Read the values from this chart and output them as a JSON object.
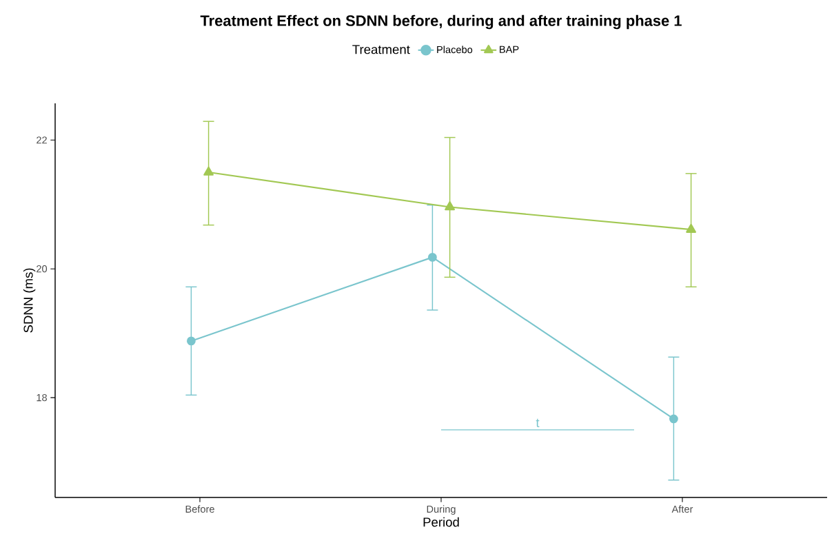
{
  "chart_data": {
    "type": "line",
    "title": "Treatment Effect on SDNN before, during and after training phase 1",
    "xlabel": "Period",
    "ylabel": "SDNN (ms)",
    "legend_title": "Treatment",
    "legend": "top",
    "categories": [
      "Before",
      "During",
      "After"
    ],
    "series": [
      {
        "name": "Placebo",
        "color": "#7ac5cd",
        "marker": "circle",
        "values": [
          18.88,
          20.18,
          17.67
        ],
        "errors": [
          [
            18.04,
            19.72
          ],
          [
            19.36,
            20.99
          ],
          [
            16.72,
            18.63
          ]
        ]
      },
      {
        "name": "BAP",
        "color": "#a2c853",
        "marker": "triangle",
        "values": [
          21.5,
          20.96,
          20.61
        ],
        "errors": [
          [
            20.68,
            22.29
          ],
          [
            19.87,
            22.04
          ],
          [
            19.72,
            21.48
          ]
        ]
      }
    ],
    "ylim": [
      16.45,
      22.57
    ],
    "yticks": [
      18,
      20,
      22
    ],
    "grid": false,
    "line_style": "solid",
    "annotations": [
      "t"
    ]
  }
}
